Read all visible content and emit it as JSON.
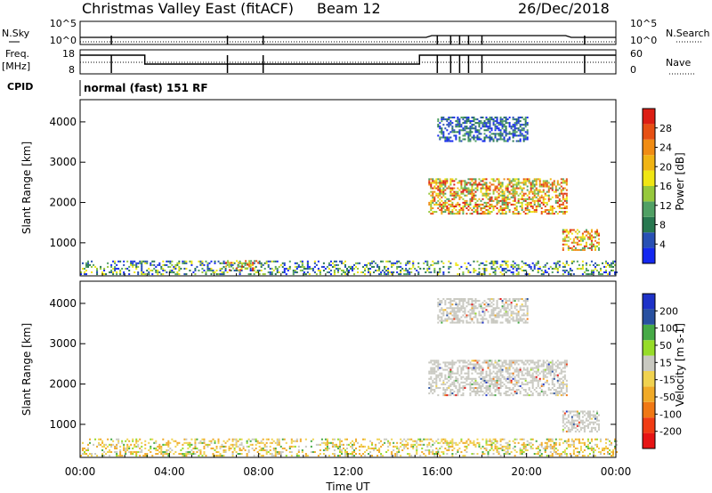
{
  "header": {
    "title": "Christmas Valley East (fitACF)",
    "beam": "Beam 12",
    "date": "26/Dec/2018"
  },
  "top_panels": {
    "nsky_label": "N.Sky",
    "nsearch_label": "N.Search",
    "nsky_ticks": [
      "10^5",
      "10^0"
    ],
    "nsearch_ticks": [
      "10^5",
      "10^0"
    ],
    "freq_label_1": "Freq.",
    "freq_label_2": "[MHz]",
    "freq_ticks": [
      "18",
      "8"
    ],
    "nave_label": "Nave",
    "nave_ticks": [
      "60",
      "0"
    ],
    "cpid_label": "CPID",
    "cpid_text": "normal (fast) 151 RF"
  },
  "time_axis": {
    "label": "Time UT",
    "ticks": [
      "00:00",
      "04:00",
      "08:00",
      "12:00",
      "16:00",
      "20:00",
      "00:00"
    ]
  },
  "colors": {
    "power_scale": [
      "#1428f0",
      "#2850b4",
      "#287850",
      "#50a064",
      "#96c83c",
      "#f0e614",
      "#f0b414",
      "#f08c14",
      "#e65014",
      "#dc1e14"
    ],
    "velocity_scale": [
      "#e61414",
      "#f03c14",
      "#f07814",
      "#f0aa28",
      "#f0d250",
      "#c8c8c0",
      "#96dc28",
      "#46aa46",
      "#2850a0",
      "#1e32c8"
    ]
  },
  "chart_data": [
    {
      "type": "heatmap",
      "panel": "power",
      "ylabel": "Slant Range [km]",
      "yticks": [
        "1000",
        "2000",
        "3000",
        "4000"
      ],
      "ylim": [
        180,
        4550
      ],
      "xlim_hours": [
        0,
        24
      ],
      "colorbar_label": "Power [dB]",
      "colorbar_ticks": [
        "4",
        "8",
        "12",
        "16",
        "20",
        "24",
        "28"
      ],
      "colorbar_range": [
        0,
        30
      ],
      "echo_regions": [
        {
          "t_start": 0.0,
          "t_end": 24.0,
          "r_min": 200,
          "r_max": 520,
          "level": "low-mid"
        },
        {
          "t_start": 6.5,
          "t_end": 8.0,
          "r_min": 300,
          "r_max": 560,
          "level": "high"
        },
        {
          "t_start": 15.6,
          "t_end": 21.8,
          "r_min": 1700,
          "r_max": 2600,
          "level": "high"
        },
        {
          "t_start": 16.0,
          "t_end": 20.0,
          "r_min": 3500,
          "r_max": 4100,
          "level": "low"
        },
        {
          "t_start": 21.6,
          "t_end": 23.2,
          "r_min": 800,
          "r_max": 1300,
          "level": "high"
        }
      ]
    },
    {
      "type": "heatmap",
      "panel": "velocity",
      "ylabel": "Slant Range [km]",
      "yticks": [
        "1000",
        "2000",
        "3000",
        "4000"
      ],
      "ylim": [
        180,
        4550
      ],
      "xlim_hours": [
        0,
        24
      ],
      "colorbar_label": "Velocity [m s-1]",
      "colorbar_ticks": [
        "200",
        "100",
        "50",
        "15",
        "-15",
        "-50",
        "-100",
        "-200"
      ],
      "echo_regions": [
        {
          "t_start": 0.0,
          "t_end": 24.0,
          "r_min": 200,
          "r_max": 620,
          "velocity": "negative-small"
        },
        {
          "t_start": 15.6,
          "t_end": 21.8,
          "r_min": 1700,
          "r_max": 2600,
          "velocity": "near-zero"
        },
        {
          "t_start": 16.0,
          "t_end": 20.0,
          "r_min": 3500,
          "r_max": 4100,
          "velocity": "near-zero"
        },
        {
          "t_start": 21.6,
          "t_end": 23.2,
          "r_min": 800,
          "r_max": 1300,
          "velocity": "near-zero"
        }
      ]
    }
  ]
}
